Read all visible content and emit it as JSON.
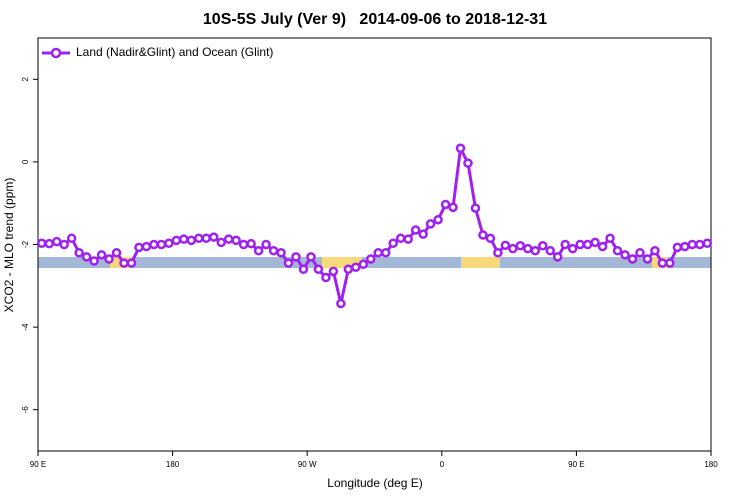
{
  "chart_data": {
    "type": "line",
    "title": "10S-5S July (Ver 9)   2014-09-06 to 2018-12-31",
    "x_label": "Longitude (deg E)",
    "y_label": "XCO2 - MLO trend (ppm)",
    "xlim": [
      90,
      540
    ],
    "xticks": [
      {
        "value": 90,
        "label": "90 E"
      },
      {
        "value": 180,
        "label": "180"
      },
      {
        "value": 270,
        "label": "90 W"
      },
      {
        "value": 360,
        "label": "0"
      },
      {
        "value": 450,
        "label": "90 E"
      },
      {
        "value": 540,
        "label": "180"
      }
    ],
    "ylim": [
      -7,
      3
    ],
    "yticks": [
      2,
      0,
      -2,
      -4,
      -6
    ],
    "legend": "top-left",
    "x": [
      92.5,
      97.5,
      102.5,
      107.5,
      112.5,
      117.5,
      122.5,
      127.5,
      132.5,
      137.5,
      142.5,
      147.5,
      152.5,
      157.5,
      162.5,
      167.5,
      172.5,
      177.5,
      182.5,
      187.5,
      192.5,
      197.5,
      202.5,
      207.5,
      212.5,
      217.5,
      222.5,
      227.5,
      232.5,
      237.5,
      242.5,
      247.5,
      252.5,
      257.5,
      262.5,
      267.5,
      272.5,
      277.5,
      282.5,
      287.5,
      292.5,
      297.5,
      302.5,
      307.5,
      312.5,
      317.5,
      322.5,
      327.5,
      332.5,
      337.5,
      342.5,
      347.5,
      352.5,
      357.5,
      362.5,
      367.5,
      372.5,
      377.5,
      382.5,
      387.5,
      392.5,
      397.5,
      402.5,
      407.5,
      412.5,
      417.5,
      422.5,
      427.5,
      432.5,
      437.5,
      442.5,
      447.5,
      452.5,
      457.5,
      462.5,
      467.5,
      472.5,
      477.5,
      482.5,
      487.5,
      492.5,
      497.5,
      502.5,
      507.5,
      512.5,
      517.5,
      522.5,
      527.5,
      532.5,
      537.5
    ],
    "series": [
      {
        "name": "Land (Nadir&Glint) and Ocean (Glint)",
        "color": "#a020f0",
        "values": [
          -1.97,
          -1.98,
          -1.93,
          -2.0,
          -1.85,
          -2.2,
          -2.3,
          -2.4,
          -2.25,
          -2.35,
          -2.2,
          -2.45,
          -2.45,
          -2.07,
          -2.05,
          -2.0,
          -2.0,
          -1.97,
          -1.9,
          -1.87,
          -1.9,
          -1.85,
          -1.85,
          -1.82,
          -1.95,
          -1.87,
          -1.9,
          -2.0,
          -1.98,
          -2.15,
          -2.0,
          -2.15,
          -2.2,
          -2.45,
          -2.3,
          -2.6,
          -2.3,
          -2.6,
          -2.8,
          -2.65,
          -3.43,
          -2.6,
          -2.55,
          -2.48,
          -2.35,
          -2.2,
          -2.2,
          -1.97,
          -1.85,
          -1.87,
          -1.65,
          -1.75,
          -1.5,
          -1.4,
          -1.03,
          -1.1,
          0.33,
          -0.03,
          -1.12,
          -1.77,
          -1.85,
          -2.2,
          -2.02,
          -2.1,
          -2.03,
          -2.1,
          -2.15,
          -2.03,
          -2.15,
          -2.3,
          -2.0,
          -2.1,
          -2.0,
          -2.0,
          -1.95,
          -2.05,
          -1.85,
          -2.15,
          -2.25,
          -2.35,
          -2.2,
          -2.35,
          -2.15,
          -2.45,
          -2.45,
          -2.07,
          -2.05,
          -2.0,
          -2.0,
          -1.97
        ]
      }
    ]
  }
}
